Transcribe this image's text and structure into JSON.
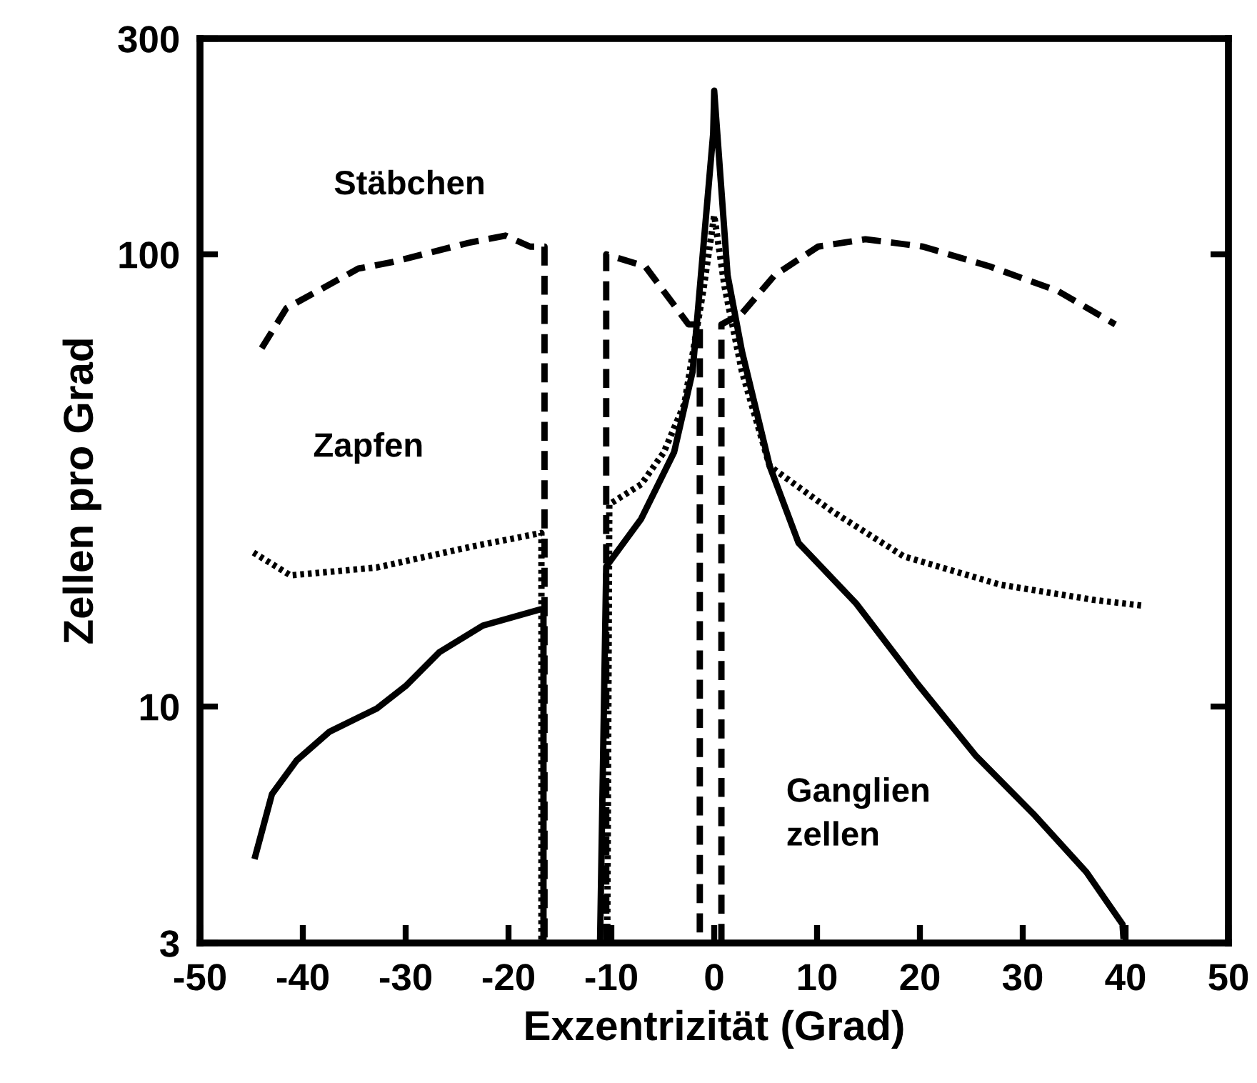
{
  "chart_data": {
    "type": "line",
    "xlabel": "Exzentrizität (Grad)",
    "ylabel": "Zellen pro Grad",
    "log": "y",
    "xlim": [
      -50,
      50
    ],
    "ylim": [
      3,
      300
    ],
    "xticks": [
      -50,
      -40,
      -30,
      -20,
      -10,
      0,
      10,
      20,
      30,
      40,
      50
    ],
    "yticks": [
      3,
      10,
      100,
      300
    ],
    "grid": false,
    "legend": false,
    "marker": "none",
    "series": [
      {
        "name": "Stäbchen",
        "color": "#000000",
        "line_style": "dashed",
        "x": [
          -44,
          -41.6,
          -34.6,
          -31.4,
          -23.9,
          -20.3,
          -17.9,
          -16.5,
          -16.5,
          null,
          -10.5,
          -10.5,
          -6.7,
          -2.9,
          -2.5,
          -1.4,
          -1.4,
          null,
          0.7,
          0.7,
          2.7,
          5.9,
          10.1,
          14.7,
          20.3,
          26.8,
          33.4,
          39
        ],
        "values": [
          62,
          76,
          93,
          96,
          106,
          110,
          104,
          104,
          3,
          null,
          3,
          100,
          94,
          72,
          70,
          70,
          3,
          null,
          3,
          70,
          74,
          90,
          104,
          108,
          104,
          94,
          83,
          70
        ]
      },
      {
        "name": "Zapfen",
        "color": "#000000",
        "line_style": "dotted",
        "x": [
          -44.8,
          -41.2,
          -32.8,
          -23.5,
          -16.8,
          -16.8,
          null,
          -10.4,
          -10.2,
          -7.1,
          -4.9,
          -2.9,
          -1,
          0,
          1,
          2.7,
          5.4,
          11.5,
          18.4,
          27.8,
          37,
          41.8
        ],
        "values": [
          21.9,
          19.5,
          20.3,
          22.6,
          24.2,
          3,
          null,
          3,
          28,
          31,
          36.5,
          46.7,
          85,
          122,
          85,
          55,
          34,
          27,
          21.5,
          18.6,
          17.2,
          16.7
        ]
      },
      {
        "name": "Ganglien\nzellen",
        "color": "#000000",
        "line_style": "solid",
        "x": [
          -44.7,
          -43,
          -40.6,
          -37.4,
          -32.8,
          -30,
          -26.7,
          -22.5,
          -16.9,
          -16.6,
          -16.6,
          null,
          -11.1,
          -10.5,
          -7.1,
          -3.9,
          -2.1,
          -1.1,
          -0.1,
          0,
          1.3,
          2.7,
          5.4,
          8.2,
          13.8,
          19.8,
          25.4,
          31,
          36.2,
          39.7,
          39.8
        ],
        "values": [
          4.6,
          6.4,
          7.6,
          8.8,
          9.9,
          11.1,
          13.2,
          15.1,
          16.4,
          16.4,
          3,
          null,
          3,
          20.4,
          26,
          36.5,
          55,
          101,
          185,
          230,
          90,
          61,
          34,
          23,
          16.9,
          11.2,
          7.8,
          5.8,
          4.3,
          3.3,
          3.06
        ]
      }
    ]
  }
}
